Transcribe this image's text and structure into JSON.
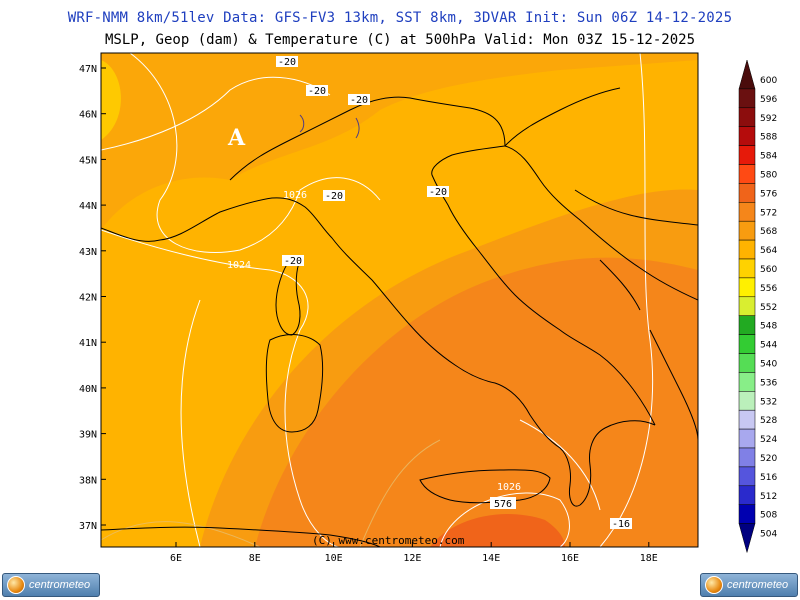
{
  "header": {
    "line1": "WRF-NMM 8km/51lev  Data: GFS-FV3 13km, SST 8km, 3DVAR  Init: Sun 06Z 14-12-2025",
    "line2": "MSLP, Geop (dam) & Temperature (C) at 500hPa  Valid: Mon 03Z 15-12-2025"
  },
  "map": {
    "lat_labels": [
      "47N",
      "46N",
      "45N",
      "44N",
      "43N",
      "42N",
      "41N",
      "40N",
      "39N",
      "38N",
      "37N"
    ],
    "lon_labels": [
      "6E",
      "8E",
      "10E",
      "12E",
      "14E",
      "16E",
      "18E"
    ],
    "copyright": "(C) www.centrometeo.com",
    "high_marker": "A",
    "isobar_labels": [
      "1026",
      "1024",
      "1026"
    ],
    "temperature_labels": [
      "-20",
      "-20",
      "-20",
      "-20",
      "-20",
      "-20",
      "-16"
    ],
    "geop_label": "576"
  },
  "colorbar": {
    "levels": [
      "600",
      "596",
      "592",
      "588",
      "584",
      "580",
      "576",
      "572",
      "568",
      "564",
      "560",
      "556",
      "552",
      "548",
      "544",
      "540",
      "536",
      "532",
      "528",
      "524",
      "520",
      "516",
      "512",
      "508",
      "504"
    ],
    "colors": [
      "#4a0c0c",
      "#6a1010",
      "#8c0d0d",
      "#b50c0c",
      "#e61a0a",
      "#ff4a14",
      "#f0641a",
      "#f5861a",
      "#f89c10",
      "#ffb300",
      "#ffd200",
      "#fff000",
      "#d9ee30",
      "#22aa22",
      "#33cc33",
      "#55dd55",
      "#88ee88",
      "#bbf0bb",
      "#c8c8f2",
      "#a8a8ee",
      "#8080e6",
      "#5555dd",
      "#2a2acc",
      "#0000b0",
      "#000080"
    ]
  },
  "branding": {
    "logo_left": "centrometeo",
    "logo_right": "centrometeo"
  }
}
